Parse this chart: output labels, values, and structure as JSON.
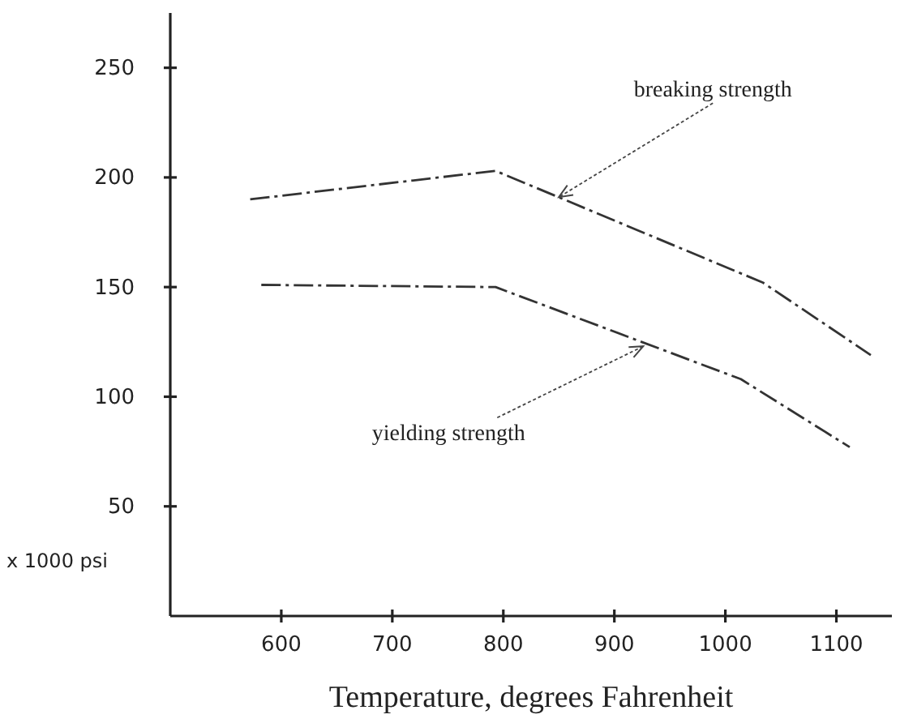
{
  "chart_data": {
    "type": "line",
    "xlabel": "Temperature, degrees Fahrenheit",
    "ylabel": "x 1000 psi",
    "xlim": [
      500,
      1150
    ],
    "xticks": [
      600,
      700,
      800,
      900,
      1000,
      1100
    ],
    "ylim": [
      0,
      275
    ],
    "yticks": [
      50,
      100,
      150,
      200,
      250
    ],
    "grid": false,
    "marker": "none",
    "line_style": "dashed",
    "series": [
      {
        "color": "#333333",
        "x": [
          572,
          793,
          1034,
          1131
        ],
        "values": [
          190,
          203,
          152,
          119
        ]
      },
      {
        "color": "#333333",
        "x": [
          582,
          793,
          1014,
          1112
        ],
        "values": [
          151,
          150,
          108,
          77
        ]
      }
    ],
    "annotations": [
      {
        "text": "breaking strength",
        "x": 850,
        "y": 191
      },
      {
        "text": "yielding strength",
        "x": 926,
        "y": 123
      }
    ]
  }
}
